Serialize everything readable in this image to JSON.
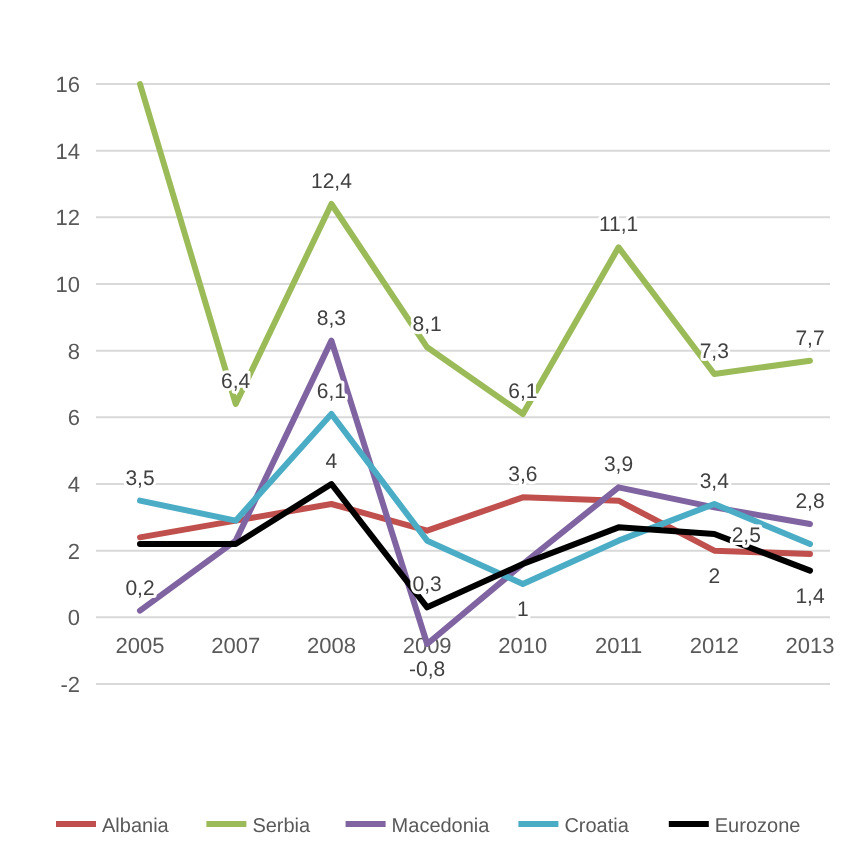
{
  "chart_data": {
    "type": "line",
    "categories": [
      "2005",
      "2007",
      "2008",
      "2009",
      "2010",
      "2011",
      "2012",
      "2013"
    ],
    "series": [
      {
        "name": "Albania",
        "color": "#c0504d",
        "values": [
          2.4,
          2.9,
          3.4,
          2.6,
          3.6,
          3.5,
          2.0,
          1.9
        ],
        "value_labels": [
          null,
          null,
          null,
          null,
          "3,6",
          null,
          "2",
          null
        ]
      },
      {
        "name": "Serbia",
        "color": "#9bbb59",
        "values": [
          16,
          6.4,
          12.4,
          8.1,
          6.1,
          11.1,
          7.3,
          7.7
        ],
        "value_labels": [
          null,
          "6,4",
          "12,4",
          "8,1",
          "6,1",
          "11,1",
          "7,3",
          "7,7"
        ]
      },
      {
        "name": "Macedonia",
        "color": "#8064a2",
        "values": [
          0.2,
          2.3,
          8.3,
          -0.8,
          1.6,
          3.9,
          3.3,
          2.8
        ],
        "value_labels": [
          "0,2",
          null,
          "8,3",
          "-0,8",
          null,
          "3,9",
          null,
          "2,8"
        ]
      },
      {
        "name": "Croatia",
        "color": "#4bacc6",
        "values": [
          3.5,
          2.9,
          6.1,
          2.3,
          1.0,
          2.3,
          3.4,
          2.2
        ],
        "value_labels": [
          "3,5",
          null,
          "6,1",
          null,
          "1",
          null,
          "3,4",
          null
        ]
      },
      {
        "name": "Eurozone",
        "color": "#000000",
        "values": [
          2.2,
          2.2,
          4.0,
          0.3,
          1.6,
          2.7,
          2.5,
          1.4
        ],
        "value_labels": [
          null,
          null,
          "4",
          "0,3",
          null,
          null,
          "2,5",
          "1,4"
        ]
      }
    ],
    "ylim": [
      -2,
      16
    ],
    "yticks": [
      -2,
      0,
      2,
      4,
      6,
      8,
      10,
      12,
      14,
      16
    ],
    "grid": "y",
    "legend": "bottom",
    "marker": "none",
    "line_style": "solid"
  }
}
